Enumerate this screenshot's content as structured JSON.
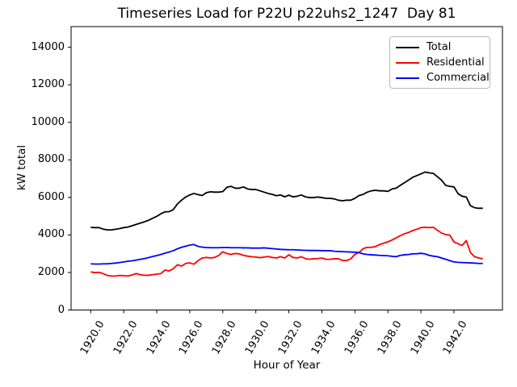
{
  "figure": {
    "title": "Timeseries Load for P22U p22uhs2_1247  Day 81"
  },
  "chart_data": {
    "type": "line",
    "title": "Timeseries Load for P22U p22uhs2_1247  Day 81",
    "xlabel": "Hour of Year",
    "ylabel": "kW total",
    "grid": false,
    "legend_position": "upper right",
    "xlim": [
      1918.81,
      1944.94
    ],
    "ylim": [
      0,
      15100
    ],
    "x_ticks": [
      1920,
      1922,
      1924,
      1926,
      1928,
      1930,
      1932,
      1934,
      1936,
      1938,
      1940,
      1942
    ],
    "x_tick_labels": [
      "1920.0",
      "1922.0",
      "1924.0",
      "1926.0",
      "1928.0",
      "1930.0",
      "1932.0",
      "1934.0",
      "1936.0",
      "1938.0",
      "1940.0",
      "1942.0"
    ],
    "y_ticks": [
      0,
      2000,
      4000,
      6000,
      8000,
      10000,
      12000,
      14000
    ],
    "y_tick_labels": [
      "0",
      "2000",
      "4000",
      "6000",
      "8000",
      "10000",
      "12000",
      "14000"
    ],
    "x": [
      1920.0,
      1920.25,
      1920.5,
      1920.75,
      1921.0,
      1921.25,
      1921.5,
      1921.75,
      1922.0,
      1922.25,
      1922.5,
      1922.75,
      1923.0,
      1923.25,
      1923.5,
      1923.75,
      1924.0,
      1924.25,
      1924.5,
      1924.75,
      1925.0,
      1925.25,
      1925.5,
      1925.75,
      1926.0,
      1926.25,
      1926.5,
      1926.75,
      1927.0,
      1927.25,
      1927.5,
      1927.75,
      1928.0,
      1928.25,
      1928.5,
      1928.75,
      1929.0,
      1929.25,
      1929.5,
      1929.75,
      1930.0,
      1930.25,
      1930.5,
      1930.75,
      1931.0,
      1931.25,
      1931.5,
      1931.75,
      1932.0,
      1932.25,
      1932.5,
      1932.75,
      1933.0,
      1933.25,
      1933.5,
      1933.75,
      1934.0,
      1934.25,
      1934.5,
      1934.75,
      1935.0,
      1935.25,
      1935.5,
      1935.75,
      1936.0,
      1936.25,
      1936.5,
      1936.75,
      1937.0,
      1937.25,
      1937.5,
      1937.75,
      1938.0,
      1938.25,
      1938.5,
      1938.75,
      1939.0,
      1939.25,
      1939.5,
      1939.75,
      1940.0,
      1940.25,
      1940.5,
      1940.75,
      1941.0,
      1941.25,
      1941.5,
      1941.75,
      1942.0,
      1942.25,
      1942.5,
      1942.75,
      1943.0,
      1943.25,
      1943.5,
      1943.75
    ],
    "series": [
      {
        "name": "Total",
        "color": "#000000",
        "values": [
          4400,
          4390,
          4390,
          4310,
          4270,
          4270,
          4300,
          4340,
          4390,
          4420,
          4490,
          4560,
          4630,
          4700,
          4780,
          4890,
          4990,
          5130,
          5230,
          5240,
          5350,
          5650,
          5850,
          6020,
          6130,
          6210,
          6150,
          6100,
          6250,
          6300,
          6280,
          6280,
          6310,
          6540,
          6590,
          6490,
          6490,
          6560,
          6450,
          6420,
          6420,
          6350,
          6280,
          6210,
          6160,
          6090,
          6130,
          6030,
          6120,
          6030,
          6060,
          6130,
          6030,
          5990,
          5990,
          6020,
          5990,
          5950,
          5950,
          5920,
          5850,
          5820,
          5850,
          5850,
          5950,
          6100,
          6160,
          6280,
          6350,
          6380,
          6350,
          6350,
          6320,
          6450,
          6490,
          6640,
          6780,
          6920,
          7070,
          7160,
          7250,
          7350,
          7310,
          7280,
          7100,
          6920,
          6640,
          6590,
          6560,
          6200,
          6060,
          6020,
          5560,
          5450,
          5420,
          5420
        ]
      },
      {
        "name": "Residential",
        "color": "#ff0000",
        "values": [
          2030,
          1990,
          2010,
          1940,
          1840,
          1810,
          1810,
          1840,
          1830,
          1810,
          1870,
          1940,
          1880,
          1850,
          1850,
          1880,
          1910,
          1940,
          2130,
          2080,
          2200,
          2410,
          2340,
          2480,
          2510,
          2440,
          2630,
          2770,
          2800,
          2770,
          2800,
          2910,
          3100,
          3010,
          2960,
          3010,
          2990,
          2910,
          2870,
          2840,
          2820,
          2790,
          2820,
          2850,
          2800,
          2770,
          2840,
          2770,
          2940,
          2800,
          2770,
          2840,
          2740,
          2700,
          2730,
          2740,
          2770,
          2700,
          2700,
          2730,
          2730,
          2640,
          2630,
          2730,
          2960,
          3060,
          3270,
          3340,
          3340,
          3380,
          3490,
          3560,
          3630,
          3730,
          3840,
          3960,
          4060,
          4130,
          4230,
          4300,
          4390,
          4410,
          4390,
          4410,
          4250,
          4100,
          4020,
          3990,
          3630,
          3530,
          3440,
          3700,
          3060,
          2840,
          2770,
          2730
        ]
      },
      {
        "name": "Commercial",
        "color": "#0000ff",
        "values": [
          2460,
          2450,
          2450,
          2460,
          2460,
          2480,
          2500,
          2530,
          2560,
          2600,
          2620,
          2660,
          2700,
          2740,
          2790,
          2850,
          2900,
          2960,
          3030,
          3090,
          3160,
          3260,
          3340,
          3400,
          3460,
          3490,
          3390,
          3350,
          3330,
          3320,
          3320,
          3320,
          3330,
          3330,
          3320,
          3320,
          3320,
          3310,
          3310,
          3300,
          3300,
          3300,
          3310,
          3290,
          3270,
          3250,
          3230,
          3220,
          3210,
          3210,
          3200,
          3190,
          3180,
          3170,
          3170,
          3170,
          3160,
          3160,
          3160,
          3130,
          3120,
          3110,
          3100,
          3090,
          3080,
          3060,
          2990,
          2960,
          2940,
          2930,
          2910,
          2900,
          2890,
          2860,
          2840,
          2910,
          2940,
          2960,
          2990,
          3000,
          3020,
          2990,
          2910,
          2870,
          2840,
          2770,
          2700,
          2630,
          2560,
          2540,
          2530,
          2520,
          2510,
          2500,
          2480,
          2480
        ]
      }
    ]
  }
}
